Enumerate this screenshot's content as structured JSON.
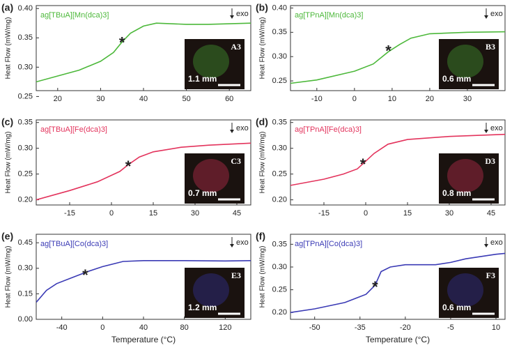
{
  "chart_data": [
    {
      "type": "line",
      "panel": "(a)",
      "title": "ag[TBuA][Mn(dca)3]",
      "ylabel": "Heat Flow (mW/mg)",
      "annotation": "exo",
      "color": "#4cb83a",
      "x": [
        15,
        20,
        25,
        30,
        33,
        35,
        37,
        40,
        43,
        50,
        55,
        60,
        65
      ],
      "values": [
        0.275,
        0.285,
        0.295,
        0.31,
        0.325,
        0.343,
        0.358,
        0.37,
        0.375,
        0.373,
        0.373,
        0.374,
        0.375
      ],
      "xlim": [
        15,
        65
      ],
      "xticks": [
        20,
        30,
        40,
        50,
        60
      ],
      "ylim": [
        0.26,
        0.405
      ],
      "yticks": [
        {
          "value": 0.3,
          "label": "0.30"
        },
        0.35,
        {
          "value": 0.4,
          "label": "0.40"
        },
        0.25
      ],
      "marker": {
        "label": "*",
        "x": 35,
        "y": 0.345
      },
      "inset_label": "A3",
      "scale_label": "1.1 mm"
    },
    {
      "type": "line",
      "panel": "(b)",
      "title": "ag[TPnA][Mn(dca)3]",
      "ylabel": "Heat Flow (mW/mg)",
      "annotation": "exo",
      "color": "#4cb83a",
      "x": [
        -17,
        -10,
        0,
        5,
        9,
        12,
        15,
        20,
        30,
        40
      ],
      "values": [
        0.245,
        0.252,
        0.27,
        0.285,
        0.31,
        0.325,
        0.338,
        0.347,
        0.35,
        0.351
      ],
      "xlim": [
        -17,
        40
      ],
      "xticks": [
        -10,
        0,
        10,
        20,
        30
      ],
      "ylim": [
        0.23,
        0.405
      ],
      "yticks": [
        0.25,
        {
          "value": 0.3,
          "label": "0.30"
        },
        0.35,
        {
          "value": 0.4,
          "label": "0.40"
        }
      ],
      "marker": {
        "label": "*",
        "x": 9,
        "y": 0.315
      },
      "inset_label": "B3",
      "scale_label": "0.6 mm"
    },
    {
      "type": "line",
      "panel": "(c)",
      "title": "ag[TBuA][Fe(dca)3]",
      "ylabel": "Heat Flow (mW/mg)",
      "annotation": "exo",
      "color": "#e3335c",
      "x": [
        -27,
        -15,
        -5,
        3,
        6,
        10,
        15,
        25,
        35,
        50
      ],
      "values": [
        0.2,
        0.218,
        0.235,
        0.255,
        0.268,
        0.283,
        0.293,
        0.302,
        0.306,
        0.31
      ],
      "xlim": [
        -27,
        50
      ],
      "xticks": [
        -15,
        0,
        15,
        30,
        45
      ],
      "ylim": [
        0.19,
        0.355
      ],
      "yticks": [
        {
          "value": 0.2,
          "label": "0.20"
        },
        0.25,
        {
          "value": 0.3,
          "label": "0.30"
        },
        0.35
      ],
      "marker": {
        "label": "*",
        "x": 6,
        "y": 0.268
      },
      "inset_label": "C3",
      "scale_label": "0.7 mm"
    },
    {
      "type": "line",
      "panel": "(d)",
      "title": "ag[TPnA][Fe(dca)3]",
      "ylabel": "Heat Flow (mW/mg)",
      "annotation": "exo",
      "color": "#e3335c",
      "x": [
        -27,
        -15,
        -8,
        -3,
        0,
        3,
        8,
        15,
        30,
        50
      ],
      "values": [
        0.228,
        0.24,
        0.25,
        0.26,
        0.275,
        0.29,
        0.308,
        0.317,
        0.323,
        0.327
      ],
      "xlim": [
        -27,
        50
      ],
      "xticks": [
        -15,
        0,
        15,
        30,
        45
      ],
      "ylim": [
        0.19,
        0.355
      ],
      "yticks": [
        {
          "value": 0.2,
          "label": "0.20"
        },
        0.25,
        {
          "value": 0.3,
          "label": "0.30"
        },
        0.35
      ],
      "marker": {
        "label": "*",
        "x": -1,
        "y": 0.272
      },
      "inset_label": "D3",
      "scale_label": "0.8 mm"
    },
    {
      "type": "line",
      "panel": "(e)",
      "title": "ag[TBuA][Co(dca)3]",
      "ylabel": "Heat Flow (mW/mg)",
      "xlabel": "Temperature (°C)",
      "annotation": "exo",
      "color": "#3a3ab5",
      "x": [
        -65,
        -55,
        -45,
        -30,
        -15,
        0,
        20,
        40,
        80,
        120,
        145
      ],
      "values": [
        0.1,
        0.17,
        0.21,
        0.245,
        0.28,
        0.31,
        0.34,
        0.345,
        0.345,
        0.343,
        0.345
      ],
      "xlim": [
        -65,
        145
      ],
      "xticks": [
        -40,
        0,
        40,
        80,
        120
      ],
      "ylim": [
        0,
        0.5
      ],
      "yticks": [
        {
          "value": 0,
          "label": "0.00"
        },
        0.15,
        {
          "value": 0.3,
          "label": "0.30"
        },
        0.45
      ],
      "marker": {
        "label": "*",
        "x": -17,
        "y": 0.27
      },
      "inset_label": "E3",
      "scale_label": "1.2 mm"
    },
    {
      "type": "line",
      "panel": "(f)",
      "title": "ag[TPnA][Co(dca)3]",
      "ylabel": "Heat Flow (mW/mg)",
      "xlabel": "Temperature (°C)",
      "annotation": "exo",
      "color": "#3a3ab5",
      "x": [
        -58,
        -50,
        -40,
        -33,
        -30,
        -28,
        -25,
        -20,
        -10,
        -5,
        0,
        10,
        13
      ],
      "values": [
        0.2,
        0.208,
        0.222,
        0.24,
        0.26,
        0.29,
        0.3,
        0.305,
        0.305,
        0.31,
        0.318,
        0.328,
        0.33
      ],
      "xlim": [
        -58,
        13
      ],
      "xticks": [
        -50,
        -35,
        -20,
        -5,
        10
      ],
      "ylim": [
        0.185,
        0.372
      ],
      "yticks": [
        {
          "value": 0.2,
          "label": "0.20"
        },
        0.25,
        {
          "value": 0.3,
          "label": "0.30"
        },
        0.35
      ],
      "marker": {
        "label": "*",
        "x": -30,
        "y": 0.26
      },
      "inset_label": "F3",
      "scale_label": "0.6 mm"
    }
  ]
}
